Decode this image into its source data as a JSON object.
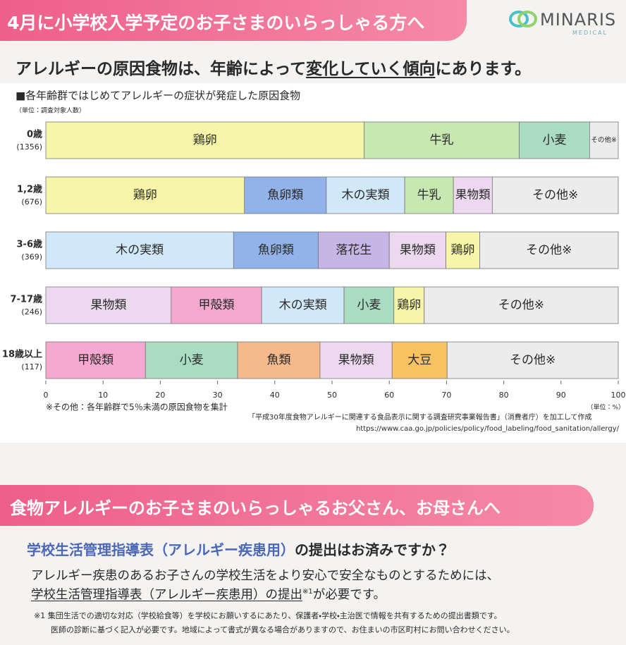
{
  "header": {
    "banner": "4月に小学校入学予定のお子さまのいらっしゃる方へ",
    "logo": "MINARIS",
    "logo_sub": "MEDICAL"
  },
  "heading": {
    "before": "アレルギーの原因食物は、年齢によって",
    "emphasis": "変化していく傾向",
    "after": "にあります。"
  },
  "chart_data": {
    "type": "bar",
    "orientation": "horizontal",
    "stacked": true,
    "title": "■各年齢群ではじめてアレルギーの症状が発症した原因食物",
    "unit_note": "（単位：調査対象人数）",
    "x_unit": "（単位：%）",
    "xlim": [
      0,
      100
    ],
    "xticks": [
      0,
      10,
      20,
      30,
      40,
      50,
      60,
      70,
      80,
      90,
      100
    ],
    "groups": [
      {
        "label": "0歳",
        "count": "(1356)",
        "segments": [
          {
            "name": "鶏卵",
            "value": 55.6,
            "color": "#f7f6a8"
          },
          {
            "name": "牛乳",
            "value": 27.1,
            "color": "#c8e8b2"
          },
          {
            "name": "小麦",
            "value": 12.3,
            "color": "#aadcc2"
          },
          {
            "name": "その他※",
            "value": 5.0,
            "color": "#ececec"
          }
        ]
      },
      {
        "label": "1,2歳",
        "count": "(676)",
        "segments": [
          {
            "name": "鶏卵",
            "value": 34.7,
            "color": "#f7f6a8"
          },
          {
            "name": "魚卵類",
            "value": 14.3,
            "color": "#91b3ea"
          },
          {
            "name": "木の実類",
            "value": 13.7,
            "color": "#d0e8f8"
          },
          {
            "name": "牛乳",
            "value": 8.5,
            "color": "#c8e8b2"
          },
          {
            "name": "果物類",
            "value": 6.8,
            "color": "#ecd9ef"
          },
          {
            "name": "その他※",
            "value": 22.0,
            "color": "#ececec"
          }
        ]
      },
      {
        "label": "3-6歳",
        "count": "(369)",
        "segments": [
          {
            "name": "木の実類",
            "value": 32.8,
            "color": "#d0e8f8"
          },
          {
            "name": "魚卵類",
            "value": 14.8,
            "color": "#91b3ea"
          },
          {
            "name": "落花生",
            "value": 12.4,
            "color": "#c6b6e6"
          },
          {
            "name": "果物類",
            "value": 9.9,
            "color": "#ecd9ef"
          },
          {
            "name": "鶏卵",
            "value": 5.9,
            "color": "#f7f6a8"
          },
          {
            "name": "その他※",
            "value": 24.2,
            "color": "#ececec"
          }
        ]
      },
      {
        "label": "7-17歳",
        "count": "(246)",
        "segments": [
          {
            "name": "果物類",
            "value": 21.9,
            "color": "#ecd9ef"
          },
          {
            "name": "甲殻類",
            "value": 15.8,
            "color": "#f5a9d0"
          },
          {
            "name": "木の実類",
            "value": 14.4,
            "color": "#d0e8f8"
          },
          {
            "name": "小麦",
            "value": 8.7,
            "color": "#aadcc2"
          },
          {
            "name": "鶏卵",
            "value": 5.3,
            "color": "#f7f6a8"
          },
          {
            "name": "その他※",
            "value": 33.9,
            "color": "#ececec"
          }
        ]
      },
      {
        "label": "18歳以上",
        "count": "(117)",
        "segments": [
          {
            "name": "甲殻類",
            "value": 17.4,
            "color": "#f5a9d0"
          },
          {
            "name": "小麦",
            "value": 16.1,
            "color": "#aadcc2"
          },
          {
            "name": "魚類",
            "value": 14.4,
            "color": "#f5b98c"
          },
          {
            "name": "果物類",
            "value": 12.6,
            "color": "#ecd9ef"
          },
          {
            "name": "大豆",
            "value": 9.6,
            "color": "#f8c262"
          },
          {
            "name": "その他※",
            "value": 29.9,
            "color": "#ececec"
          }
        ]
      }
    ],
    "footnote": "※その他：各年齢群で5％未満の原因食物を集計",
    "source_line1": "「平成30年度食物アレルギーに関連する食品表示に関する調査研究事業報告書」（消費者庁）を加工して作成",
    "source_line2": "https://www.caa.go.jp/policies/policy/food_labeling/food_sanitation/allergy/"
  },
  "section2": {
    "banner": "食物アレルギーのお子さまのいらっしゃるお父さん、お母さんへ",
    "question_highlight": "学校生活管理指導表（アレルギー疾患用）",
    "question_rest": "の提出はお済みですか？",
    "body_line1": "アレルギー疾患のあるお子さんの学校生活をより安心で安全なものとするためには、",
    "body_line2_underlined": "学校生活管理指導表（アレルギー疾患用）の提出",
    "body_line2_mark": "※1",
    "body_line2_rest": "が必要です。",
    "note_mark": "※1",
    "note_line1": "集団生活での適切な対応（学校給食等）を学校にお願いするにあたり、保護者・学校・主治医で情報を共有するための提出書類です。",
    "note_line2": "医師の診断に基づく記入が必要です。地域によって書式が異なる場合がありますので、お住まいの市区町村にお問い合わせください。"
  }
}
